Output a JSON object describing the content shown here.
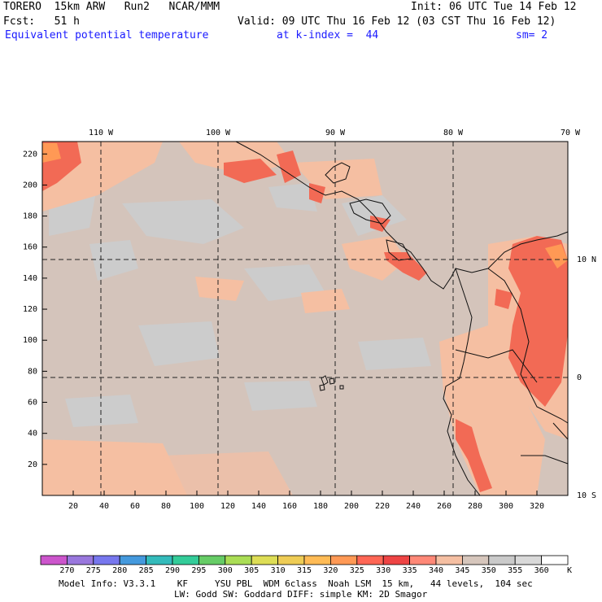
{
  "header": {
    "model": "TORERO  15km ARW   Run2   NCAR/MMM",
    "init": "Init: 06 UTC Tue 14 Feb 12",
    "fcst": "Fcst:   51 h",
    "valid": "Valid: 09 UTC Thu 16 Feb 12 (03 CST Thu 16 Feb 12)",
    "field": "Equivalent potential temperature",
    "level": "at k-index =  44",
    "smooth": "sm= 2"
  },
  "map": {
    "lon_labels": [
      "110 W",
      "100 W",
      "90 W",
      "80 W",
      "70 W"
    ],
    "lat_labels": [
      "10 N",
      "0",
      "10 S"
    ],
    "x_ticks": [
      "20",
      "40",
      "60",
      "80",
      "100",
      "120",
      "140",
      "160",
      "180",
      "200",
      "220",
      "240",
      "260",
      "280",
      "300",
      "320"
    ],
    "y_ticks": [
      "220",
      "200",
      "180",
      "160",
      "140",
      "120",
      "100",
      "80",
      "60",
      "40",
      "20"
    ]
  },
  "colorbar": {
    "levels": [
      "270",
      "275",
      "280",
      "285",
      "290",
      "295",
      "300",
      "305",
      "310",
      "315",
      "320",
      "325",
      "330",
      "335",
      "340",
      "345",
      "350",
      "355",
      "360"
    ],
    "unit": "K",
    "colors": [
      "#cc55cc",
      "#9977dd",
      "#7777ee",
      "#4499dd",
      "#33bbbb",
      "#33cc99",
      "#66cc66",
      "#aadd55",
      "#dddd55",
      "#eecc55",
      "#ffbb55",
      "#ff9955",
      "#ff6655",
      "#ee4444",
      "#ff8877",
      "#f5bfa2",
      "#d6c6bc",
      "#cacaca",
      "#d9d9d9",
      "#ffffff"
    ]
  },
  "footer": {
    "line1": "Model Info: V3.3.1    KF     YSU PBL  WDM 6class  Noah LSM  15 km,   44 levels,  104 sec",
    "line2": "LW: Godd SW: Goddard DIFF: simple KM: 2D Smagor"
  }
}
